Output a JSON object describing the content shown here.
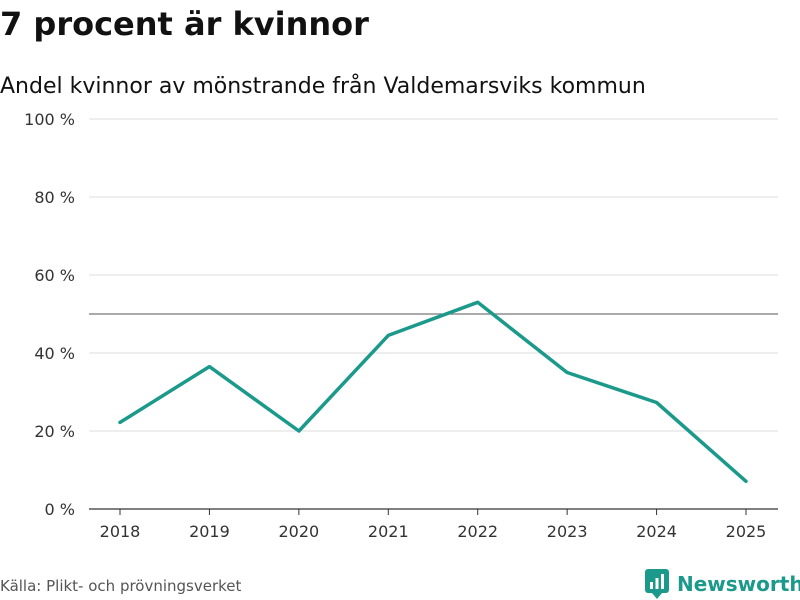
{
  "title": "7 procent är kvinnor",
  "subtitle": "Andel kvinnor av mönstrande från Valdemarsviks kommun",
  "source": "Källa: Plikt- och prövningsverket",
  "brand": "Newsworthy",
  "colors": {
    "line": "#1b9a8c",
    "grid": "#dddddd",
    "reference": "#777777",
    "axis": "#333333",
    "brand": "#1b9a8c"
  },
  "chart_data": {
    "type": "line",
    "title": "7 procent är kvinnor",
    "subtitle": "Andel kvinnor av mönstrande från Valdemarsviks kommun",
    "xlabel": "",
    "ylabel": "",
    "x": [
      "2018",
      "2019",
      "2020",
      "2021",
      "2022",
      "2023",
      "2024",
      "2025"
    ],
    "series": [
      {
        "name": "Andel kvinnor",
        "values": [
          22.2,
          36.5,
          20.0,
          44.5,
          53.0,
          35.0,
          27.3,
          7.1
        ]
      }
    ],
    "ylim": [
      0,
      100
    ],
    "yticks": [
      0,
      20,
      40,
      60,
      80,
      100
    ],
    "ytick_labels": [
      "0 %",
      "20 %",
      "40 %",
      "60 %",
      "80 %",
      "100 %"
    ],
    "reference_line": 50,
    "grid": true,
    "legend": "none"
  }
}
